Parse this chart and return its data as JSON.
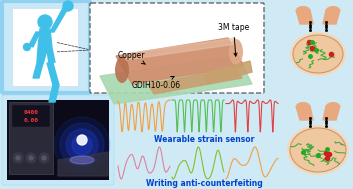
{
  "bg_color": "#d0eaf5",
  "fig_width": 3.53,
  "fig_height": 1.89,
  "sensor_label1": "Copper",
  "sensor_label2": "GDIH10-0.06",
  "sensor_label3": "3M tape",
  "wearable_label": "Wearable strain sensor",
  "writing_label": "Writing anti-counterfeiting",
  "wave_orange": "#f0a040",
  "wave_green": "#50c050",
  "wave_red": "#e04040",
  "wave_pink": "#e080a0",
  "wave_lime": "#80c030",
  "skin_color": "#e8a880",
  "ellipse_color": "#f0c8a0",
  "ellipse_edge": "#c89870",
  "fiber_color": "#30a830",
  "dot_red": "#cc2020",
  "dot_green": "#20aa20",
  "human_color": "#40c0e8",
  "human_panel_bg": "#c8e8f8",
  "human_panel_glow": "#b8e0f0",
  "dashed_box_bg": "white",
  "rod_color": "#d09070",
  "rod_dark": "#b87050",
  "tape_color": "#a8d8b0",
  "copper_color": "#c8a070"
}
